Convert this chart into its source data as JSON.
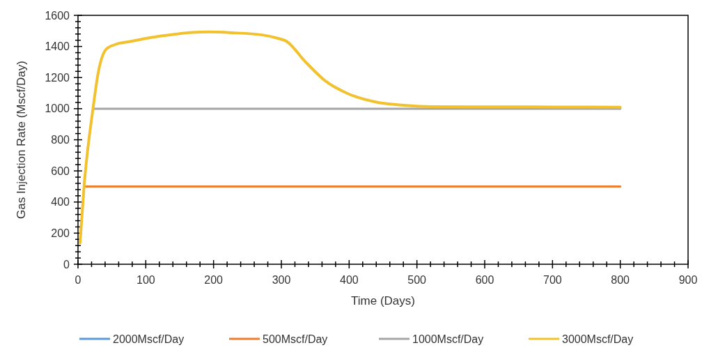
{
  "chart_data": {
    "type": "line",
    "xlabel": "Time (Days)",
    "ylabel": "Gas Injection Rate (Mscf/Day)",
    "xlim": [
      0,
      900
    ],
    "ylim": [
      0,
      1600
    ],
    "xticks": [
      0,
      {
        "value": 20,
        "label": null
      },
      {
        "value": 40,
        "label": null
      },
      {
        "value": 60,
        "label": null
      },
      {
        "value": 80,
        "label": null
      },
      100,
      {
        "value": 120,
        "label": null
      },
      {
        "value": 140,
        "label": null
      },
      {
        "value": 160,
        "label": null
      },
      {
        "value": 180,
        "label": null
      },
      200,
      {
        "value": 220,
        "label": null
      },
      {
        "value": 240,
        "label": null
      },
      {
        "value": 260,
        "label": null
      },
      {
        "value": 280,
        "label": null
      },
      300,
      {
        "value": 320,
        "label": null
      },
      {
        "value": 340,
        "label": null
      },
      {
        "value": 360,
        "label": null
      },
      {
        "value": 380,
        "label": null
      },
      400,
      {
        "value": 420,
        "label": null
      },
      {
        "value": 440,
        "label": null
      },
      {
        "value": 460,
        "label": null
      },
      {
        "value": 480,
        "label": null
      },
      500,
      {
        "value": 520,
        "label": null
      },
      {
        "value": 540,
        "label": null
      },
      {
        "value": 560,
        "label": null
      },
      {
        "value": 580,
        "label": null
      },
      600,
      {
        "value": 620,
        "label": null
      },
      {
        "value": 640,
        "label": null
      },
      {
        "value": 660,
        "label": null
      },
      {
        "value": 680,
        "label": null
      },
      700,
      {
        "value": 720,
        "label": null
      },
      {
        "value": 740,
        "label": null
      },
      {
        "value": 760,
        "label": null
      },
      {
        "value": 780,
        "label": null
      },
      800,
      {
        "value": 820,
        "label": null
      },
      {
        "value": 840,
        "label": null
      },
      {
        "value": 860,
        "label": null
      },
      {
        "value": 880,
        "label": null
      },
      900
    ],
    "yticks": [
      0,
      {
        "value": 40,
        "label": null
      },
      {
        "value": 80,
        "label": null
      },
      {
        "value": 120,
        "label": null
      },
      {
        "value": 160,
        "label": null
      },
      200,
      {
        "value": 240,
        "label": null
      },
      {
        "value": 280,
        "label": null
      },
      {
        "value": 320,
        "label": null
      },
      {
        "value": 360,
        "label": null
      },
      400,
      {
        "value": 440,
        "label": null
      },
      {
        "value": 480,
        "label": null
      },
      {
        "value": 520,
        "label": null
      },
      {
        "value": 560,
        "label": null
      },
      600,
      {
        "value": 640,
        "label": null
      },
      {
        "value": 680,
        "label": null
      },
      {
        "value": 720,
        "label": null
      },
      {
        "value": 760,
        "label": null
      },
      800,
      {
        "value": 840,
        "label": null
      },
      {
        "value": 880,
        "label": null
      },
      {
        "value": 920,
        "label": null
      },
      {
        "value": 960,
        "label": null
      },
      1000,
      {
        "value": 1040,
        "label": null
      },
      {
        "value": 1080,
        "label": null
      },
      {
        "value": 1120,
        "label": null
      },
      {
        "value": 1160,
        "label": null
      },
      1200,
      {
        "value": 1240,
        "label": null
      },
      {
        "value": 1280,
        "label": null
      },
      {
        "value": 1320,
        "label": null
      },
      {
        "value": 1360,
        "label": null
      },
      1400,
      {
        "value": 1440,
        "label": null
      },
      {
        "value": 1480,
        "label": null
      },
      {
        "value": 1520,
        "label": null
      },
      {
        "value": 1560,
        "label": null
      },
      1600
    ],
    "grid": false,
    "legend": "bottom",
    "marker": "none",
    "line_style": "solid",
    "series": [
      {
        "name": "2000Mscf/Day",
        "color": "#5b9bd5"
      },
      {
        "name": "500Mscf/Day",
        "color": "#ed7d31",
        "x": [
          10,
          800
        ],
        "values": [
          500,
          500
        ]
      },
      {
        "name": "1000Mscf/Day",
        "color": "#a5a5a5",
        "x": [
          23,
          800
        ],
        "values": [
          1000,
          1000
        ]
      },
      {
        "name": "3000Mscf/Day",
        "color": "#f2c12e",
        "x": [
          3,
          9,
          22,
          30,
          42,
          56,
          77,
          108,
          142,
          169,
          193,
          227,
          272,
          296,
          306,
          337,
          365,
          398,
          439,
          481,
          521,
          600,
          700,
          800
        ],
        "values": [
          137,
          503,
          996,
          1235,
          1384,
          1414,
          1432,
          1458,
          1478,
          1490,
          1493,
          1488,
          1474,
          1451,
          1437,
          1294,
          1178,
          1097,
          1043,
          1022,
          1013,
          1012,
          1011,
          1010
        ]
      }
    ]
  }
}
